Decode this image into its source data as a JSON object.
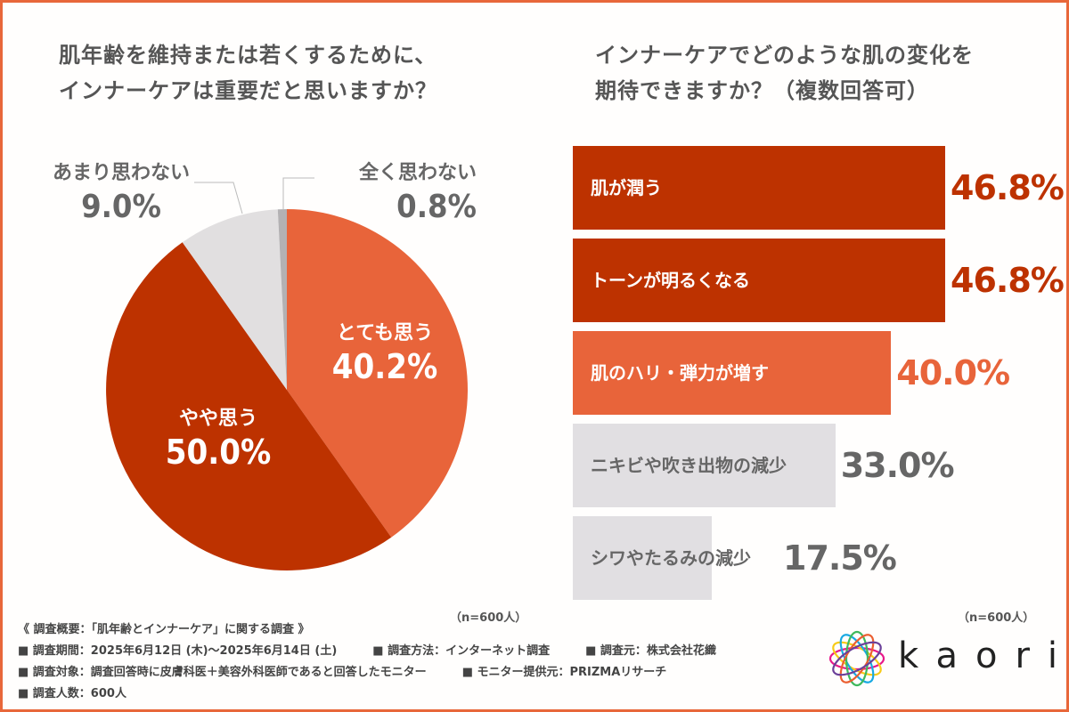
{
  "left_panel": {
    "title_line1": "肌年齢を維持または若くするために、",
    "title_line2": "インナーケアは重要だと思いますか？",
    "n_note": "（n=600人）"
  },
  "right_panel": {
    "title_line1": "インナーケアでどのような肌の変化を",
    "title_line2": "期待できますか？（複数回答可）",
    "n_note": "（n=600人）"
  },
  "chart_data": [
    {
      "type": "pie",
      "title": "肌年齢を維持または若くするために、インナーケアは重要だと思いますか？",
      "start": "12 o'clock, clockwise",
      "slices": [
        {
          "label": "とても思う",
          "value": 40.2,
          "display": "40.2%",
          "color": "#e8643a",
          "label_color": "#ffffff"
        },
        {
          "label": "やや思う",
          "value": 50.0,
          "display": "50.0%",
          "color": "#bd3200",
          "label_color": "#ffffff"
        },
        {
          "label": "あまり思わない",
          "value": 9.0,
          "display": "9.0%",
          "color": "#e1dfe0",
          "label_color": "#666666"
        },
        {
          "label": "全く思わない",
          "value": 0.8,
          "display": "0.8%",
          "color": "#b3b1b3",
          "label_color": "#666666"
        }
      ]
    },
    {
      "type": "bar",
      "orientation": "horizontal",
      "title": "インナーケアでどのような肌の変化を期待できますか？（複数回答可）",
      "xlim": [
        0,
        50
      ],
      "categories": [
        "肌が潤う",
        "トーンが明るくなる",
        "肌のハリ・弾力が増す",
        "ニキビや吹き出物の減少",
        "シワやたるみの減少"
      ],
      "values": [
        46.8,
        46.8,
        40.0,
        33.0,
        17.5
      ],
      "displays": [
        "46.8%",
        "46.8%",
        "40.0%",
        "33.0%",
        "17.5%"
      ],
      "bar_colors": [
        "#bd3200",
        "#bd3200",
        "#e8643a",
        "#e1dfe2",
        "#e1dfe2"
      ],
      "label_colors": [
        "#ffffff",
        "#ffffff",
        "#ffffff",
        "#666666",
        "#666666"
      ],
      "value_colors": [
        "#bd3200",
        "#bd3200",
        "#e8643a",
        "#666666",
        "#666666"
      ]
    }
  ],
  "footer": {
    "heading": "《 調査概要：「肌年齢とインナーケア」に関する調査 》",
    "items": [
      [
        "■ 調査期間：2025年6月12日 (木)～2025年6月14日 (土)",
        "■ 調査方法：インターネット調査",
        "■ 調査元：株式会社花織"
      ],
      [
        "■ 調査対象：調査回答時に皮膚科医＋美容外科医師であると回答したモニター",
        "■ モニター提供元：PRIZMAリサーチ"
      ],
      [
        "■ 調査人数：600人"
      ]
    ]
  },
  "logo": {
    "text": "kaori",
    "icon": "flower-ring-logo-icon"
  }
}
